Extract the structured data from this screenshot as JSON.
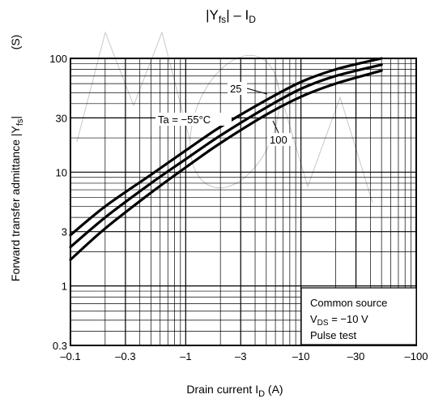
{
  "chart_data": {
    "type": "line",
    "title": "|Yfs| – ID",
    "title_parts": {
      "lead": "|Y",
      "sub1": "fs",
      "mid": "| – I",
      "sub2": "D"
    },
    "xlabel": "Drain current   ID   (A)",
    "xlabel_parts": {
      "main": "Drain current   I",
      "sub": "D",
      "unit": "   (A)"
    },
    "ylabel": "Forward transfer admittance   |Yfs|   (S)",
    "ylabel_parts": {
      "main": "Forward transfer admittance   |Y",
      "sub": "fs",
      "end": "|",
      "unit": "(S)"
    },
    "x_scale": "log",
    "y_scale": "log",
    "xlim": [
      -0.1,
      -100
    ],
    "ylim": [
      0.3,
      100
    ],
    "x_ticks": [
      "–0.1",
      "–0.3",
      "–1",
      "–3",
      "–10",
      "–30",
      "–100"
    ],
    "y_ticks": [
      "0.3",
      "1",
      "3",
      "10",
      "30",
      "100"
    ],
    "grid": true,
    "series": [
      {
        "name": "Ta = −55°C",
        "x": [
          -0.1,
          -0.2,
          -0.5,
          -1,
          -2,
          -5,
          -10,
          -20,
          -50
        ],
        "y": [
          2.8,
          5.0,
          9.5,
          15.5,
          25,
          43,
          62,
          80,
          100
        ]
      },
      {
        "name": "25",
        "x": [
          -0.1,
          -0.2,
          -0.5,
          -1,
          -2,
          -5,
          -10,
          -20,
          -50
        ],
        "y": [
          2.2,
          4.0,
          8.0,
          13.0,
          21,
          37,
          54,
          70,
          88
        ]
      },
      {
        "name": "100",
        "x": [
          -0.1,
          -0.2,
          -0.5,
          -1,
          -2,
          -5,
          -10,
          -20,
          -50
        ],
        "y": [
          1.7,
          3.2,
          6.6,
          11.0,
          18,
          32,
          46,
          60,
          78
        ]
      }
    ],
    "annotations": {
      "ta": "Ta = −55°C",
      "t25": "25",
      "t100": "100"
    },
    "legend_box": {
      "line1": "Common source",
      "line2_main": "V",
      "line2_sub": "DS",
      "line2_rest": " = −10 V",
      "line3": "Pulse test"
    }
  }
}
